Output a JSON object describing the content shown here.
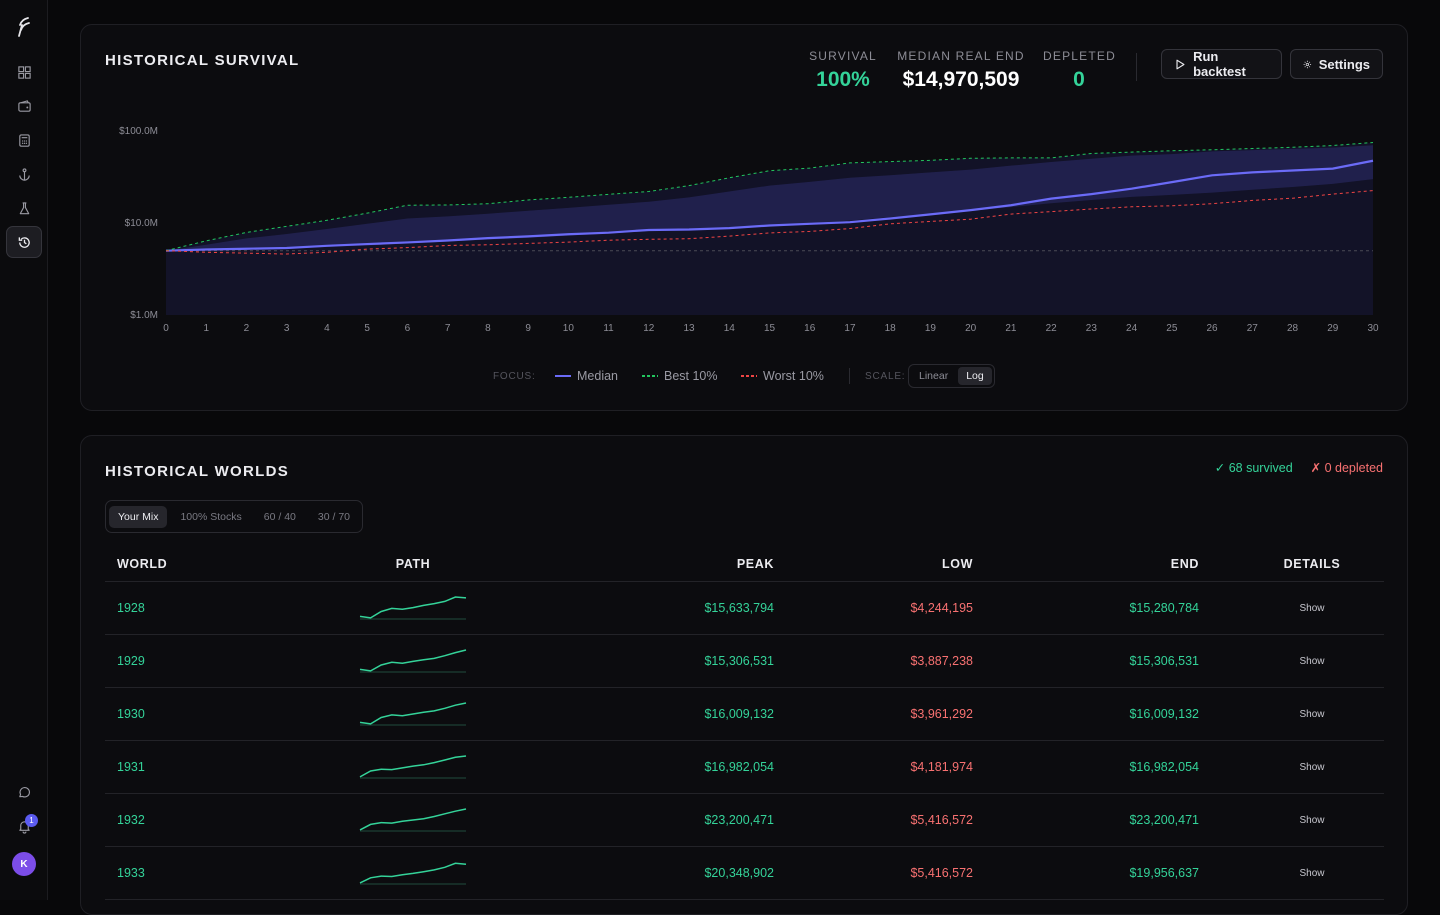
{
  "sidebar": {
    "logo": "logo-icon",
    "items": [
      {
        "name": "dashboard-icon",
        "active": false
      },
      {
        "name": "wallet-icon",
        "active": false
      },
      {
        "name": "calculator-icon",
        "active": false
      },
      {
        "name": "anchor-icon",
        "active": false
      },
      {
        "name": "flask-icon",
        "active": false
      },
      {
        "name": "history-icon",
        "active": true
      }
    ],
    "bottom": [
      "chat-icon",
      "bell-icon"
    ],
    "notification_count": "1",
    "avatar_initial": "K"
  },
  "survival": {
    "title": "HISTORICAL SURVIVAL",
    "stats": [
      {
        "label": "SURVIVAL",
        "value": "100%",
        "color": "#34d399"
      },
      {
        "label": "MEDIAN REAL END",
        "value": "$14,970,509",
        "color": "#ffffff"
      },
      {
        "label": "DEPLETED",
        "value": "0",
        "color": "#34d399"
      }
    ],
    "run_label": "Run backtest",
    "settings_label": "Settings",
    "focus_label": "FOCUS:",
    "legend": {
      "median": "Median",
      "best": "Best 10%",
      "worst": "Worst 10%"
    },
    "scale_label": "SCALE:",
    "scale_options": [
      "Linear",
      "Log"
    ],
    "scale_selected": "Log"
  },
  "chart_data": {
    "type": "line",
    "scale": "log",
    "yticks": [
      "$100.0M",
      "$10.0M",
      "$1.0M"
    ],
    "ylim": [
      1000000,
      100000000
    ],
    "x": [
      0,
      1,
      2,
      3,
      4,
      5,
      6,
      7,
      8,
      9,
      10,
      11,
      12,
      13,
      14,
      15,
      16,
      17,
      18,
      19,
      20,
      21,
      22,
      23,
      24,
      25,
      26,
      27,
      28,
      29,
      30
    ],
    "baseline": 5000000,
    "series": [
      {
        "name": "Median",
        "color": "#6b6bf7",
        "values": [
          5000000,
          5150000,
          5250000,
          5350000,
          5650000,
          5900000,
          6150000,
          6450000,
          6850000,
          7150000,
          7550000,
          7850000,
          8400000,
          8500000,
          8800000,
          9400000,
          9800000,
          10200000,
          11200000,
          12400000,
          13800000,
          15600000,
          18400000,
          20600000,
          23600000,
          27800000,
          33000000,
          35500000,
          37200000,
          39000000,
          47500000
        ]
      },
      {
        "name": "Best 10%",
        "color": "#22c55e",
        "values": [
          5000000,
          6400000,
          7900000,
          9200000,
          10700000,
          12800000,
          15600000,
          15700000,
          16200000,
          17800000,
          19000000,
          20500000,
          22000000,
          25500000,
          31000000,
          37000000,
          39500000,
          45000000,
          46500000,
          48000000,
          50500000,
          51000000,
          51000000,
          57000000,
          59000000,
          61000000,
          62500000,
          64500000,
          66500000,
          69500000,
          75000000
        ]
      },
      {
        "name": "Worst 10%",
        "color": "#ef4444",
        "values": [
          5000000,
          4800000,
          4700000,
          4600000,
          4800000,
          5200000,
          5400000,
          5700000,
          5800000,
          6000000,
          6200000,
          6500000,
          6650000,
          6750000,
          7200000,
          7800000,
          8100000,
          8700000,
          9800000,
          10400000,
          11000000,
          12500000,
          13300000,
          14200000,
          15000000,
          15400000,
          16200000,
          17600000,
          18600000,
          20600000,
          22500000
        ]
      }
    ],
    "band_upper": [
      5000000,
      5800000,
      6800000,
      7600000,
      8600000,
      9800000,
      11200000,
      11800000,
      12600000,
      13600000,
      14600000,
      15800000,
      17000000,
      19000000,
      22000000,
      25500000,
      28000000,
      31000000,
      33000000,
      35500000,
      38000000,
      42000000,
      46000000,
      50000000,
      54000000,
      56000000,
      60000000,
      62000000,
      64000000,
      66000000,
      70000000
    ],
    "band_lower": [
      5000000,
      5100000,
      5200000,
      5300000,
      5500000,
      5700000,
      6000000,
      6300000,
      6600000,
      6900000,
      7300000,
      7700000,
      8200000,
      8400000,
      8900000,
      9500000,
      10000000,
      10600000,
      11600000,
      12500000,
      13600000,
      14900000,
      16400000,
      17800000,
      19200000,
      20200000,
      21400000,
      23000000,
      24600000,
      26600000,
      30000000
    ]
  },
  "worlds": {
    "title": "HISTORICAL WORLDS",
    "survived": "✓ 68 survived",
    "depleted": "✗ 0 depleted",
    "tabs": [
      "Your Mix",
      "100% Stocks",
      "60 / 40",
      "30 / 70"
    ],
    "selected_tab": "Your Mix",
    "columns": {
      "world": "WORLD",
      "path": "PATH",
      "peak": "PEAK",
      "low": "LOW",
      "end": "END",
      "details": "DETAILS"
    },
    "rows": [
      {
        "world": "1928",
        "peak": "$15,633,794",
        "low": "$4,244,195",
        "end": "$15,280,784",
        "details": "Show",
        "spark": [
          0.12,
          0.05,
          0.34,
          0.48,
          0.44,
          0.52,
          0.62,
          0.7,
          0.8,
          1.0,
          0.96
        ]
      },
      {
        "world": "1929",
        "peak": "$15,306,531",
        "low": "$3,887,238",
        "end": "$15,306,531",
        "details": "Show",
        "spark": [
          0.12,
          0.05,
          0.32,
          0.44,
          0.4,
          0.48,
          0.56,
          0.62,
          0.74,
          0.88,
          1.0
        ]
      },
      {
        "world": "1930",
        "peak": "$16,009,132",
        "low": "$3,961,292",
        "end": "$16,009,132",
        "details": "Show",
        "spark": [
          0.12,
          0.05,
          0.34,
          0.46,
          0.42,
          0.5,
          0.58,
          0.64,
          0.76,
          0.9,
          1.0
        ]
      },
      {
        "world": "1931",
        "peak": "$16,982,054",
        "low": "$4,181,974",
        "end": "$16,982,054",
        "details": "Show",
        "spark": [
          0.05,
          0.32,
          0.4,
          0.38,
          0.46,
          0.54,
          0.6,
          0.7,
          0.82,
          0.94,
          1.0
        ]
      },
      {
        "world": "1932",
        "peak": "$23,200,471",
        "low": "$5,416,572",
        "end": "$23,200,471",
        "details": "Show",
        "spark": [
          0.05,
          0.3,
          0.38,
          0.36,
          0.44,
          0.5,
          0.56,
          0.66,
          0.78,
          0.9,
          1.0
        ]
      },
      {
        "world": "1933",
        "peak": "$20,348,902",
        "low": "$5,416,572",
        "end": "$19,956,637",
        "details": "Show",
        "spark": [
          0.05,
          0.28,
          0.36,
          0.34,
          0.42,
          0.48,
          0.56,
          0.64,
          0.76,
          0.94,
          0.9
        ]
      }
    ]
  }
}
